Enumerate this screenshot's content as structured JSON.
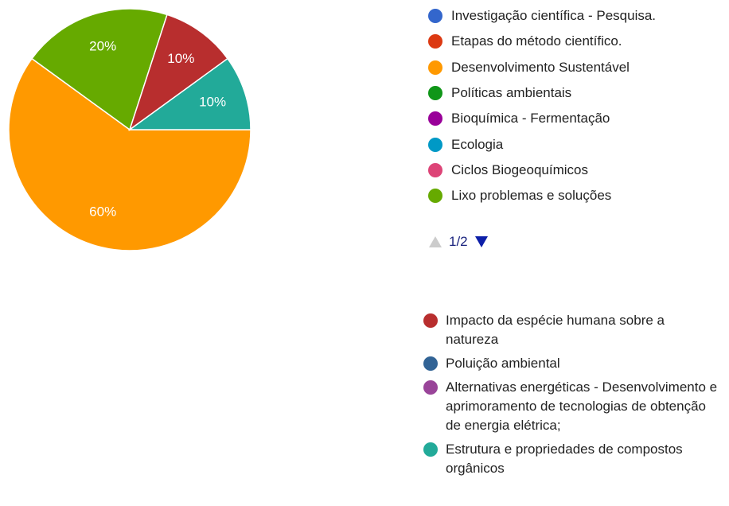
{
  "chart_data": {
    "type": "pie",
    "categories": [
      "Investigação científica - Pesquisa.",
      "Etapas do método científico.",
      "Desenvolvimento Sustentável",
      "Políticas ambientais",
      "Bioquímica - Fermentação",
      "Ecologia",
      "Ciclos Biogeoquímicos",
      "Lixo problemas e soluções",
      "Impacto da espécie humana sobre a natureza",
      "Poluição ambiental",
      "Alternativas energéticas - Desenvolvimento e aprimoramento de tecnologias de obtenção de energia elétrica;",
      "Estrutura e propriedades de compostos orgânicos"
    ],
    "values": [
      0,
      0,
      60,
      0,
      0,
      0,
      0,
      20,
      10,
      0,
      0,
      10
    ],
    "value_labels": [
      null,
      null,
      "60%",
      null,
      null,
      null,
      null,
      "20%",
      "10%",
      null,
      null,
      "10%"
    ],
    "colors": [
      "#3366cc",
      "#dc3912",
      "#ff9900",
      "#109618",
      "#990099",
      "#0099c6",
      "#dd4477",
      "#66aa00",
      "#b82e2e",
      "#316395",
      "#994499",
      "#22aa99"
    ],
    "legend_page": "1/2"
  }
}
